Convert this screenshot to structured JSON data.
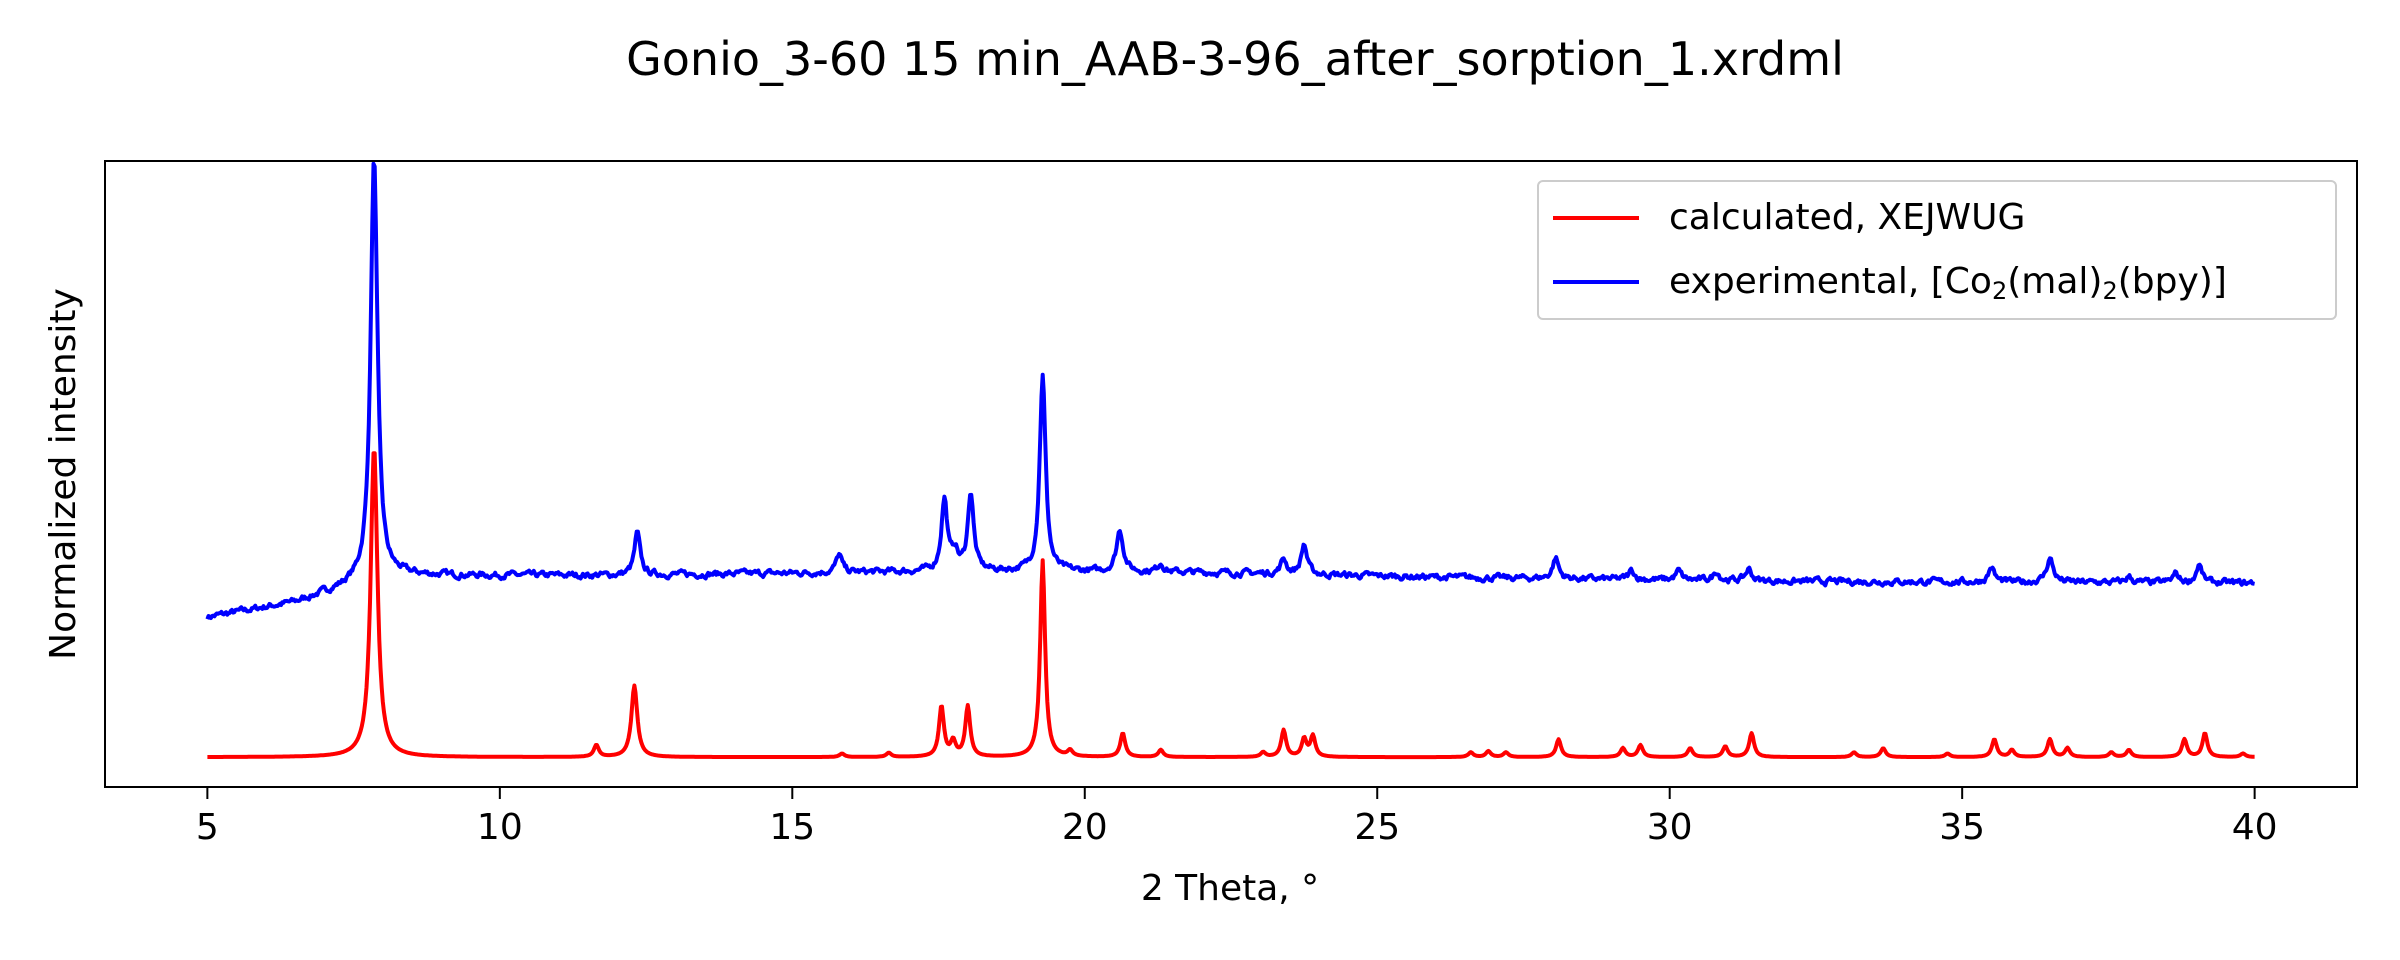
{
  "chart_data": {
    "type": "line",
    "title": "Gonio_3-60 15 min_AAB-3-96_after_sorption_1.xrdml",
    "xlabel": "2 Theta, °",
    "ylabel": "Normalized intensity",
    "xlim": [
      3.25,
      41.75
    ],
    "ylim": [
      -0.05,
      1.0
    ],
    "x_ticks": [
      5,
      10,
      15,
      20,
      25,
      30,
      35,
      40
    ],
    "y_ticks_shown": false,
    "grid": false,
    "legend_position": "top-right",
    "series": [
      {
        "name": "calculated, XEJWUG",
        "color": "#ff0000",
        "baseline": 0.0,
        "peaks": [
          {
            "x": 7.85,
            "y": 0.52,
            "w": 0.07
          },
          {
            "x": 11.65,
            "y": 0.02,
            "w": 0.05
          },
          {
            "x": 12.3,
            "y": 0.12,
            "w": 0.06
          },
          {
            "x": 15.85,
            "y": 0.006,
            "w": 0.05
          },
          {
            "x": 16.65,
            "y": 0.007,
            "w": 0.05
          },
          {
            "x": 17.55,
            "y": 0.085,
            "w": 0.05
          },
          {
            "x": 17.75,
            "y": 0.025,
            "w": 0.05
          },
          {
            "x": 18.0,
            "y": 0.085,
            "w": 0.05
          },
          {
            "x": 19.28,
            "y": 0.33,
            "w": 0.05
          },
          {
            "x": 19.75,
            "y": 0.01,
            "w": 0.05
          },
          {
            "x": 20.65,
            "y": 0.04,
            "w": 0.05
          },
          {
            "x": 21.3,
            "y": 0.012,
            "w": 0.05
          },
          {
            "x": 23.05,
            "y": 0.008,
            "w": 0.05
          },
          {
            "x": 23.4,
            "y": 0.045,
            "w": 0.05
          },
          {
            "x": 23.75,
            "y": 0.03,
            "w": 0.05
          },
          {
            "x": 23.9,
            "y": 0.035,
            "w": 0.05
          },
          {
            "x": 26.6,
            "y": 0.008,
            "w": 0.05
          },
          {
            "x": 26.9,
            "y": 0.01,
            "w": 0.05
          },
          {
            "x": 27.2,
            "y": 0.008,
            "w": 0.05
          },
          {
            "x": 28.1,
            "y": 0.03,
            "w": 0.05
          },
          {
            "x": 29.2,
            "y": 0.015,
            "w": 0.05
          },
          {
            "x": 29.5,
            "y": 0.02,
            "w": 0.05
          },
          {
            "x": 30.35,
            "y": 0.015,
            "w": 0.05
          },
          {
            "x": 30.95,
            "y": 0.018,
            "w": 0.05
          },
          {
            "x": 31.4,
            "y": 0.04,
            "w": 0.05
          },
          {
            "x": 33.15,
            "y": 0.008,
            "w": 0.05
          },
          {
            "x": 33.65,
            "y": 0.015,
            "w": 0.05
          },
          {
            "x": 34.75,
            "y": 0.006,
            "w": 0.05
          },
          {
            "x": 35.55,
            "y": 0.03,
            "w": 0.05
          },
          {
            "x": 35.85,
            "y": 0.012,
            "w": 0.05
          },
          {
            "x": 36.5,
            "y": 0.03,
            "w": 0.05
          },
          {
            "x": 36.8,
            "y": 0.015,
            "w": 0.05
          },
          {
            "x": 37.55,
            "y": 0.008,
            "w": 0.05
          },
          {
            "x": 37.85,
            "y": 0.012,
            "w": 0.05
          },
          {
            "x": 38.8,
            "y": 0.03,
            "w": 0.05
          },
          {
            "x": 39.15,
            "y": 0.04,
            "w": 0.05
          },
          {
            "x": 39.8,
            "y": 0.006,
            "w": 0.05
          }
        ]
      },
      {
        "name": "experimental, [Co2(mal)2(bpy)]",
        "color": "#0000ff",
        "background": [
          [
            5.0,
            0.235
          ],
          [
            6.5,
            0.26
          ],
          [
            7.5,
            0.29
          ],
          [
            8.3,
            0.305
          ],
          [
            12,
            0.305
          ],
          [
            16,
            0.31
          ],
          [
            18,
            0.312
          ],
          [
            22,
            0.31
          ],
          [
            26,
            0.302
          ],
          [
            32,
            0.295
          ],
          [
            40,
            0.292
          ]
        ],
        "noise": 0.004,
        "peaks": [
          {
            "x": 7.85,
            "y": 0.71,
            "w": 0.07
          },
          {
            "x": 12.35,
            "y": 0.07,
            "w": 0.06
          },
          {
            "x": 15.8,
            "y": 0.03,
            "w": 0.06
          },
          {
            "x": 17.6,
            "y": 0.12,
            "w": 0.06
          },
          {
            "x": 17.78,
            "y": 0.03,
            "w": 0.06
          },
          {
            "x": 18.05,
            "y": 0.13,
            "w": 0.06
          },
          {
            "x": 19.28,
            "y": 0.33,
            "w": 0.06
          },
          {
            "x": 20.6,
            "y": 0.07,
            "w": 0.07
          },
          {
            "x": 21.3,
            "y": 0.015,
            "w": 0.06
          },
          {
            "x": 23.4,
            "y": 0.025,
            "w": 0.06
          },
          {
            "x": 23.75,
            "y": 0.05,
            "w": 0.06
          },
          {
            "x": 28.05,
            "y": 0.035,
            "w": 0.06
          },
          {
            "x": 29.35,
            "y": 0.015,
            "w": 0.06
          },
          {
            "x": 30.15,
            "y": 0.015,
            "w": 0.06
          },
          {
            "x": 30.8,
            "y": 0.015,
            "w": 0.06
          },
          {
            "x": 31.35,
            "y": 0.02,
            "w": 0.06
          },
          {
            "x": 35.5,
            "y": 0.025,
            "w": 0.06
          },
          {
            "x": 36.5,
            "y": 0.04,
            "w": 0.07
          },
          {
            "x": 37.85,
            "y": 0.01,
            "w": 0.06
          },
          {
            "x": 38.65,
            "y": 0.015,
            "w": 0.06
          },
          {
            "x": 39.05,
            "y": 0.03,
            "w": 0.06
          }
        ]
      }
    ]
  },
  "legend": {
    "calc_label": "calculated, XEJWUG",
    "exp_prefix": "experimental, [Co",
    "sub1": "2",
    "exp_mid": "(mal)",
    "sub2": "2",
    "exp_suffix": "(bpy)]"
  }
}
